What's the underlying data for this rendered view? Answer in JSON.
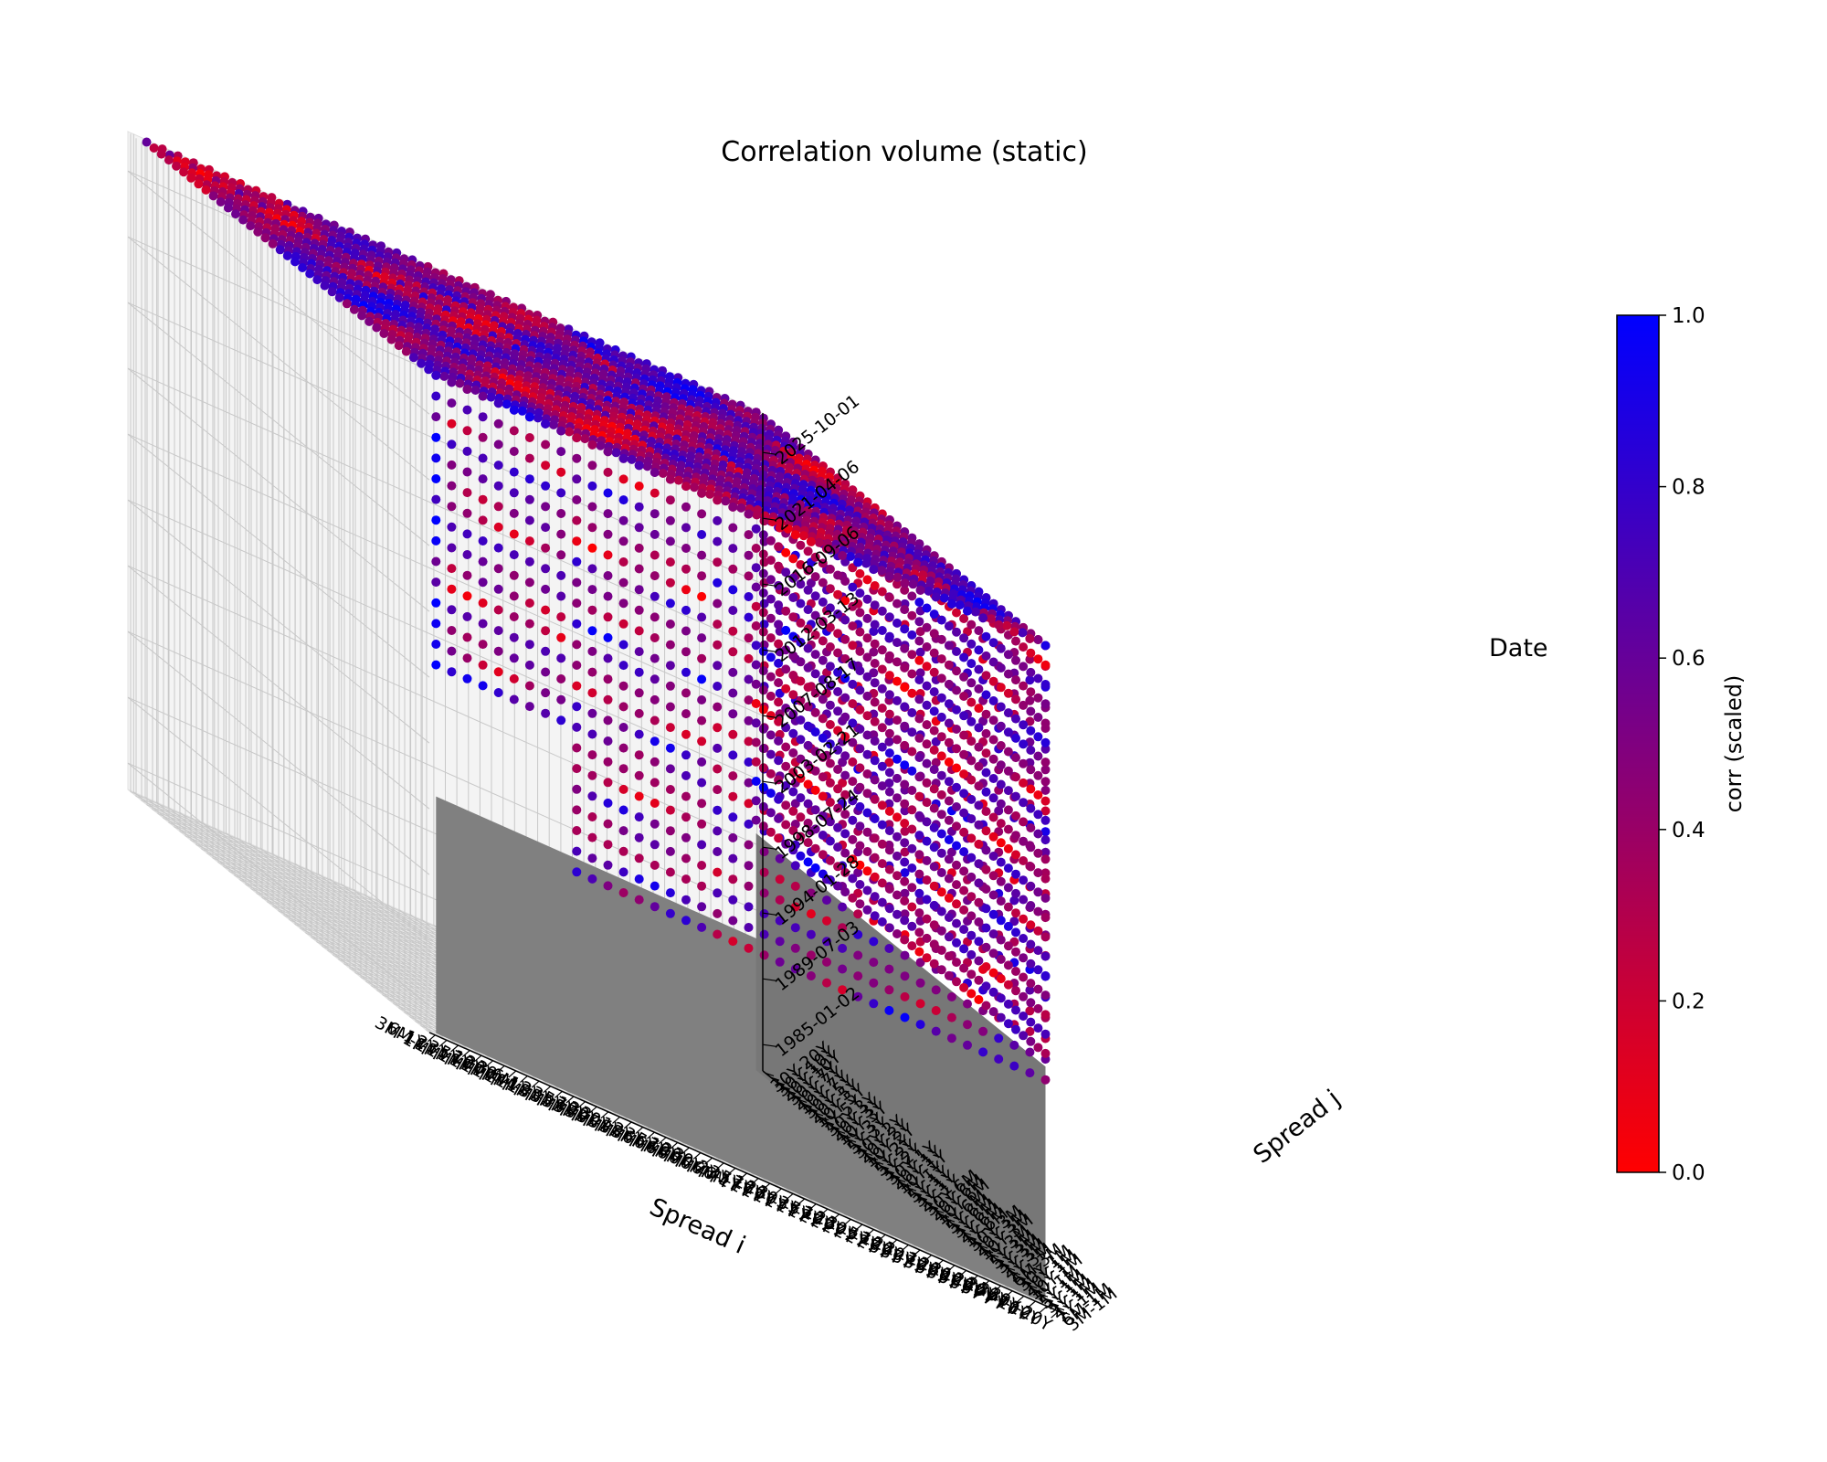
{
  "chart_data": {
    "type": "scatter",
    "projection": "3d",
    "title": "Correlation volume (static)",
    "x_axis": {
      "label": "Spread i",
      "tick_labels": [
        "3M-1M",
        "6M-1M",
        "1Y-1M",
        "2Y-1M",
        "3Y-1M",
        "5Y-1M",
        "7Y-1M",
        "10Y-1M",
        "20Y-1M",
        "30Y-1M",
        "6M-3M",
        "1Y-3M",
        "2Y-3M",
        "3Y-3M",
        "5Y-3M",
        "7Y-3M",
        "10Y-3M",
        "20Y-3M",
        "30Y-3M",
        "1Y-6M",
        "2Y-6M",
        "3Y-6M",
        "5Y-6M",
        "7Y-6M",
        "10Y-6M",
        "20Y-6M",
        "30Y-6M",
        "2Y-1Y",
        "3Y-1Y",
        "5Y-1Y",
        "7Y-1Y",
        "10Y-1Y",
        "20Y-1Y",
        "30Y-1Y",
        "3Y-2Y",
        "5Y-2Y",
        "7Y-2Y",
        "10Y-2Y",
        "20Y-2Y",
        "30Y-2Y",
        "5Y-3Y",
        "7Y-3Y",
        "10Y-3Y",
        "20Y-3Y",
        "30Y-3Y",
        "7Y-5Y",
        "10Y-5Y",
        "20Y-5Y",
        "30Y-5Y",
        "10Y-7Y",
        "20Y-7Y",
        "30Y-7Y",
        "20Y-10Y",
        "30Y-10Y",
        "30Y-20Y"
      ]
    },
    "y_axis": {
      "label": "Spread j",
      "tick_labels": [
        "3M-1M",
        "6M-1M",
        "1Y-1M",
        "2Y-1M",
        "3Y-1M",
        "5Y-1M",
        "7Y-1M",
        "10Y-1M",
        "20Y-1M",
        "30Y-1M",
        "6M-3M",
        "1Y-3M",
        "2Y-3M",
        "3Y-3M",
        "5Y-3M",
        "7Y-3M",
        "10Y-3M",
        "20Y-3M",
        "30Y-3M",
        "1Y-6M",
        "2Y-6M",
        "3Y-6M",
        "5Y-6M",
        "7Y-6M",
        "10Y-6M",
        "20Y-6M",
        "30Y-6M",
        "2Y-1Y",
        "3Y-1Y",
        "5Y-1Y",
        "7Y-1Y",
        "10Y-1Y",
        "20Y-1Y",
        "30Y-1Y",
        "3Y-2Y",
        "5Y-2Y",
        "7Y-2Y",
        "10Y-2Y",
        "20Y-2Y",
        "30Y-2Y",
        "5Y-3Y",
        "7Y-3Y",
        "10Y-3Y",
        "20Y-3Y",
        "30Y-3Y",
        "7Y-5Y",
        "10Y-5Y",
        "20Y-5Y",
        "30Y-5Y",
        "10Y-7Y",
        "20Y-7Y",
        "30Y-7Y",
        "20Y-10Y",
        "30Y-10Y",
        "30Y-20Y"
      ]
    },
    "z_axis": {
      "label": "Date",
      "tick_labels": [
        "1985-01-02",
        "1989-07-03",
        "1994-01-28",
        "1998-07-24",
        "2003-02-21",
        "2007-08-17",
        "2012-03-13",
        "2016-09-06",
        "2021-04-06",
        "2025-10-01"
      ]
    },
    "colorbar": {
      "label": "corr (scaled)",
      "range": [
        0.0,
        1.0
      ],
      "ticks": [
        "0.0",
        "0.2",
        "0.4",
        "0.6",
        "0.8",
        "1.0"
      ],
      "colormap": [
        "#ff0000",
        "#0000ff"
      ]
    },
    "colors": {
      "low": "#ff0000",
      "high": "#0000ff",
      "missing": "#808080"
    },
    "volume": {
      "description_of_values": "per-date pairwise correlation matrix of spreads; gray = missing (dates before data start)",
      "grid": [
        55,
        55,
        10
      ]
    },
    "grid": true
  }
}
